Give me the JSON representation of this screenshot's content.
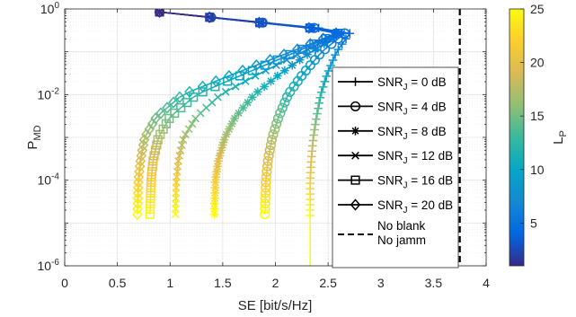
{
  "chart_data": {
    "type": "line",
    "xlabel": "SE [bit/s/Hz]",
    "ylabel": {
      "main": "P",
      "sub": "MD"
    },
    "xlim": [
      0,
      4
    ],
    "ylim": [
      1e-06,
      1
    ],
    "y_scale": "log",
    "grid": true,
    "minor_grid": true,
    "legend_position": "inside right",
    "xticks": [
      "0",
      "0.5",
      "1",
      "1.5",
      "2",
      "2.5",
      "3",
      "3.5",
      "4"
    ],
    "yticks": [
      {
        "base": "10",
        "exp": "0",
        "value": 1
      },
      {
        "base": "10",
        "exp": "-2",
        "value": 0.01
      },
      {
        "base": "10",
        "exp": "-4",
        "value": 0.0001
      },
      {
        "base": "10",
        "exp": "-6",
        "value": 1e-06
      }
    ],
    "colorbar": {
      "label": {
        "main": "L",
        "sub": "P"
      },
      "range": [
        1,
        25
      ],
      "ticks": [
        "5",
        "10",
        "15",
        "20",
        "25"
      ],
      "tick_values": [
        5,
        10,
        15,
        20,
        25
      ],
      "colormap": "parula",
      "colors": [
        "#352a87",
        "#0268e1",
        "#1389d2",
        "#06a7c6",
        "#38b99e",
        "#92bf73",
        "#d9ba56",
        "#fcce2e",
        "#f9fb0e"
      ]
    },
    "reference_line": {
      "x": 3.75,
      "style": "dashed",
      "color": "#000000",
      "name_lines": [
        "No blank",
        "No jamm"
      ]
    },
    "series": [
      {
        "name": {
          "main": "SNR",
          "sub": "J",
          "rest": " = 0 dB"
        },
        "marker": "plus",
        "end_point": {
          "x": 2.33,
          "y": 1.5e-05
        },
        "x_at_y": [
          0.9,
          2.72,
          2.58,
          2.49,
          2.43,
          2.39,
          2.36,
          2.34,
          2.33
        ],
        "stop_y": 1e-06
      },
      {
        "name": {
          "main": "SNR",
          "sub": "J",
          "rest": " = 4 dB"
        },
        "marker": "circle",
        "end_point": {
          "x": 1.9,
          "y": 1.6e-05
        },
        "x_at_y": [
          0.9,
          2.68,
          2.44,
          2.26,
          2.12,
          2.03,
          1.97,
          1.93,
          1.91
        ]
      },
      {
        "name": {
          "main": "SNR",
          "sub": "J",
          "rest": " = 8 dB"
        },
        "marker": "asterisk",
        "end_point": {
          "x": 1.42,
          "y": 1.6e-05
        },
        "x_at_y": [
          0.9,
          2.66,
          2.34,
          2.04,
          1.8,
          1.62,
          1.52,
          1.46,
          1.43
        ]
      },
      {
        "name": {
          "main": "SNR",
          "sub": "J",
          "rest": " = 12 dB"
        },
        "marker": "cross",
        "end_point": {
          "x": 1.05,
          "y": 1.6e-05
        },
        "x_at_y": [
          0.9,
          2.64,
          2.26,
          1.84,
          1.48,
          1.25,
          1.13,
          1.08,
          1.06
        ]
      },
      {
        "name": {
          "main": "SNR",
          "sub": "J",
          "rest": " = 16 dB"
        },
        "marker": "square",
        "end_point": {
          "x": 0.81,
          "y": 1.6e-05
        },
        "x_at_y": [
          0.9,
          2.63,
          2.2,
          1.7,
          1.25,
          1.0,
          0.89,
          0.84,
          0.82
        ]
      },
      {
        "name": {
          "main": "SNR",
          "sub": "J",
          "rest": " = 20 dB"
        },
        "marker": "diamond",
        "end_point": {
          "x": 0.69,
          "y": 1.6e-05
        },
        "x_at_y": [
          0.9,
          2.62,
          2.15,
          1.6,
          1.12,
          0.87,
          0.76,
          0.72,
          0.7
        ]
      }
    ],
    "y_grid_for_curves": [
      0.85,
      0.3,
      0.1,
      0.03,
      0.01,
      0.003,
      0.001,
      0.0003,
      0.0001
    ]
  }
}
